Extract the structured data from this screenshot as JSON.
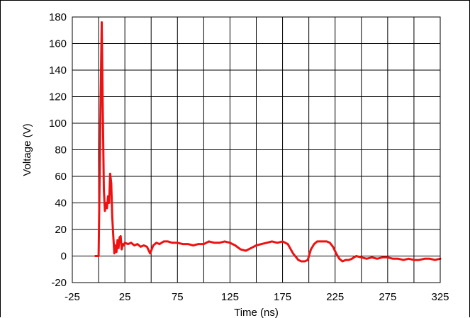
{
  "chart_data": {
    "type": "line",
    "xlabel": "Time (ns)",
    "ylabel": "Voltage (V)",
    "xlim": [
      -25,
      325
    ],
    "ylim": [
      -20,
      180
    ],
    "x_ticks": [
      -25,
      25,
      75,
      125,
      175,
      225,
      275,
      325
    ],
    "x_tick_labels": [
      "-25",
      "25",
      "75",
      "125",
      "175",
      "225",
      "275",
      "325"
    ],
    "y_ticks": [
      -20,
      0,
      20,
      40,
      60,
      80,
      100,
      120,
      140,
      160,
      180
    ],
    "y_tick_labels": [
      "-20",
      "0",
      "20",
      "40",
      "60",
      "80",
      "100",
      "120",
      "140",
      "160",
      "180"
    ],
    "grid": true,
    "series": [
      {
        "color": "#ee1111",
        "x": [
          -3,
          0,
          1,
          2,
          3,
          4,
          5,
          6,
          7,
          8,
          9,
          10,
          11,
          12,
          13,
          14,
          15,
          16,
          17,
          18,
          19,
          20,
          21,
          22,
          23,
          24,
          25,
          28,
          31,
          34,
          37,
          40,
          43,
          46,
          49,
          52,
          55,
          58,
          62,
          66,
          70,
          75,
          80,
          85,
          90,
          95,
          100,
          105,
          110,
          115,
          120,
          125,
          130,
          135,
          140,
          145,
          150,
          155,
          160,
          165,
          170,
          175,
          180,
          185,
          190,
          193,
          196,
          199,
          202,
          205,
          208,
          211,
          214,
          217,
          220,
          223,
          226,
          229,
          232,
          235,
          238,
          241,
          245,
          250,
          255,
          260,
          265,
          270,
          275,
          280,
          285,
          290,
          295,
          300,
          305,
          310,
          315,
          320,
          325
        ],
        "y": [
          0,
          0,
          60,
          120,
          176,
          110,
          50,
          34,
          40,
          36,
          45,
          40,
          62,
          55,
          30,
          15,
          2,
          8,
          3,
          12,
          6,
          14,
          15,
          5,
          9,
          8,
          10,
          9,
          10,
          8,
          9,
          7,
          8,
          7,
          2,
          8,
          10,
          9,
          11,
          11,
          10,
          10,
          9,
          9,
          8,
          9,
          9,
          11,
          10,
          10,
          11,
          10,
          8,
          5,
          4,
          6,
          8,
          9,
          10,
          11,
          10,
          11,
          9,
          2,
          -3,
          -4,
          -4,
          -3,
          5,
          9,
          11,
          11,
          11,
          11,
          10,
          7,
          2,
          -2,
          -4,
          -3,
          -3,
          -2,
          0,
          -1,
          -2,
          -1,
          -2,
          -1,
          -1,
          -2,
          -2,
          -3,
          -2,
          -3,
          -3,
          -2,
          -2,
          -3,
          -2
        ]
      }
    ]
  }
}
